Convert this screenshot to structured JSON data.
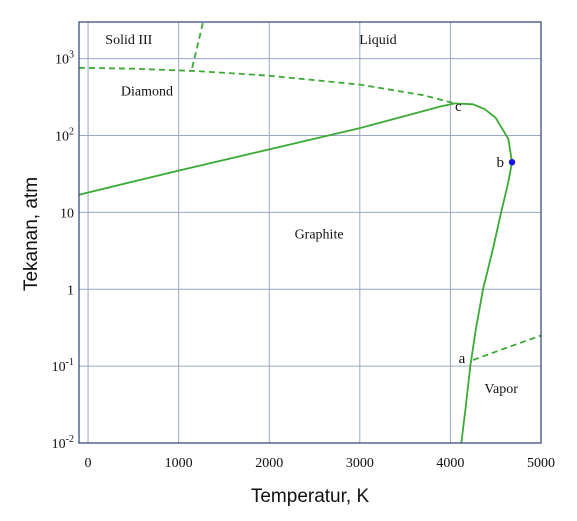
{
  "chart_data": {
    "type": "line",
    "title": "",
    "xlabel": "Temperatur, K",
    "ylabel": "Tekanan, atm",
    "xlim": [
      -100,
      5000
    ],
    "x_ticks": [
      {
        "value": 0,
        "label": "0"
      },
      {
        "value": 1000,
        "label": "1000"
      },
      {
        "value": 2000,
        "label": "2000"
      },
      {
        "value": 3000,
        "label": "3000"
      },
      {
        "value": 4000,
        "label": "4000"
      },
      {
        "value": 5000,
        "label": "5000"
      }
    ],
    "y_scale": "log",
    "ylim": [
      0.01,
      3000
    ],
    "y_ticks": [
      {
        "value": 0.01,
        "base": "10",
        "exp": "-2"
      },
      {
        "value": 0.1,
        "base": "10",
        "exp": "-1"
      },
      {
        "value": 1,
        "base": "1",
        "exp": ""
      },
      {
        "value": 10,
        "base": "10",
        "exp": ""
      },
      {
        "value": 100,
        "base": "10",
        "exp": "2"
      },
      {
        "value": 1000,
        "base": "10",
        "exp": "3"
      }
    ],
    "grid": true,
    "line_color": "#3aaa35",
    "grid_color": "#9aa6c4",
    "series": [
      {
        "style": "solid",
        "points": [
          [
            -100,
            17
          ],
          [
            1000,
            35
          ],
          [
            2000,
            66
          ],
          [
            3000,
            125
          ],
          [
            3900,
            240
          ],
          [
            4050,
            262
          ]
        ]
      },
      {
        "style": "solid",
        "points": [
          [
            4120,
            0.01
          ],
          [
            4170,
            0.03
          ],
          [
            4220,
            0.1
          ],
          [
            4280,
            0.3
          ],
          [
            4360,
            1
          ],
          [
            4460,
            3
          ],
          [
            4560,
            10
          ],
          [
            4640,
            25
          ],
          [
            4680,
            45
          ],
          [
            4640,
            90
          ],
          [
            4500,
            170
          ],
          [
            4380,
            220
          ],
          [
            4250,
            255
          ],
          [
            4050,
            262
          ]
        ]
      },
      {
        "style": "dashed",
        "points": [
          [
            -100,
            760
          ],
          [
            500,
            740
          ],
          [
            1200,
            690
          ],
          [
            2000,
            600
          ],
          [
            3000,
            460
          ],
          [
            3700,
            335
          ],
          [
            4050,
            262
          ]
        ]
      },
      {
        "style": "dashed",
        "points": [
          [
            1150,
            760
          ],
          [
            1220,
            1700
          ],
          [
            1270,
            3000
          ]
        ]
      },
      {
        "style": "dashed",
        "points": [
          [
            4250,
            0.12
          ],
          [
            4600,
            0.17
          ],
          [
            5000,
            0.25
          ]
        ]
      }
    ],
    "critical_point": {
      "label": "b",
      "x": 4680,
      "y": 45,
      "color": "#1414e6"
    },
    "point_labels": [
      {
        "label": "c",
        "x": 4050,
        "y": 210
      },
      {
        "label": "a",
        "x": 4090,
        "y": 0.11
      }
    ],
    "region_labels": [
      {
        "text": "Solid III",
        "x": 450,
        "y": 1550
      },
      {
        "text": "Liquid",
        "x": 3200,
        "y": 1550
      },
      {
        "text": "Diamond",
        "x": 650,
        "y": 330
      },
      {
        "text": "Graphite",
        "x": 2550,
        "y": 4.6
      },
      {
        "text": "Vapor",
        "x": 4560,
        "y": 0.045
      }
    ]
  }
}
